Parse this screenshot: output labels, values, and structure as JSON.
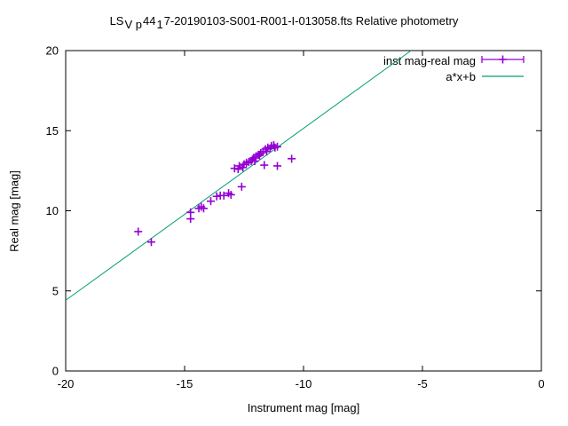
{
  "chart_data": {
    "type": "scatter",
    "title_parts": {
      "p1": "LS",
      "sub1": "V p",
      "p2": "44",
      "sub2": "1",
      "p3": "7-20190103-S001-R001-I-013058.fts Relative photometry"
    },
    "title_full": "LS_Vp44_17-20190103-S001-R001-I-013058.fts Relative photometry",
    "xlabel": "Instrument mag [mag]",
    "ylabel": "Real mag [mag]",
    "xlim": [
      -20,
      0
    ],
    "ylim": [
      0,
      20
    ],
    "xticks": [
      "-20",
      "-15",
      "-10",
      "-5",
      "0"
    ],
    "yticks": [
      "0",
      "5",
      "10",
      "15",
      "20"
    ],
    "grid": false,
    "legend_position": "top-right-inside",
    "legend": [
      {
        "label": "inst mag-real mag",
        "sample": "errorbar-point",
        "color": "#9400d3"
      },
      {
        "label": "a*x+b",
        "sample": "line",
        "color": "#009e73"
      }
    ],
    "series": [
      {
        "name": "inst mag-real mag",
        "type": "scatter",
        "marker": "plus",
        "color": "#9400d3",
        "points": [
          [
            -16.95,
            8.7
          ],
          [
            -16.4,
            8.05
          ],
          [
            -14.75,
            9.9
          ],
          [
            -14.75,
            9.5
          ],
          [
            -14.4,
            10.15
          ],
          [
            -14.3,
            10.25
          ],
          [
            -14.2,
            10.15
          ],
          [
            -13.9,
            10.6
          ],
          [
            -13.65,
            10.9
          ],
          [
            -13.5,
            10.95
          ],
          [
            -13.35,
            10.95
          ],
          [
            -13.15,
            11.1
          ],
          [
            -13.05,
            11.0
          ],
          [
            -12.6,
            11.5
          ],
          [
            -12.9,
            12.65
          ],
          [
            -12.75,
            12.6
          ],
          [
            -12.7,
            12.8
          ],
          [
            -12.55,
            12.7
          ],
          [
            -12.5,
            12.9
          ],
          [
            -12.4,
            13.0
          ],
          [
            -12.3,
            13.05
          ],
          [
            -12.2,
            13.1
          ],
          [
            -12.15,
            13.2
          ],
          [
            -12.05,
            13.1
          ],
          [
            -12.1,
            13.3
          ],
          [
            -12.0,
            13.4
          ],
          [
            -11.9,
            13.5
          ],
          [
            -11.85,
            13.45
          ],
          [
            -11.8,
            13.6
          ],
          [
            -11.7,
            13.7
          ],
          [
            -11.6,
            13.85
          ],
          [
            -11.55,
            13.7
          ],
          [
            -11.5,
            13.95
          ],
          [
            -11.4,
            13.9
          ],
          [
            -11.35,
            14.05
          ],
          [
            -11.25,
            14.1
          ],
          [
            -11.2,
            13.95
          ],
          [
            -11.1,
            14.0
          ],
          [
            -11.65,
            12.85
          ],
          [
            -11.1,
            12.8
          ],
          [
            -10.5,
            13.25
          ]
        ]
      },
      {
        "name": "a*x+b",
        "type": "line",
        "color": "#009e73",
        "a": 1.074,
        "b": 25.89,
        "endpoints": [
          [
            -20,
            4.41
          ],
          [
            -5.48,
            20
          ]
        ]
      }
    ]
  }
}
